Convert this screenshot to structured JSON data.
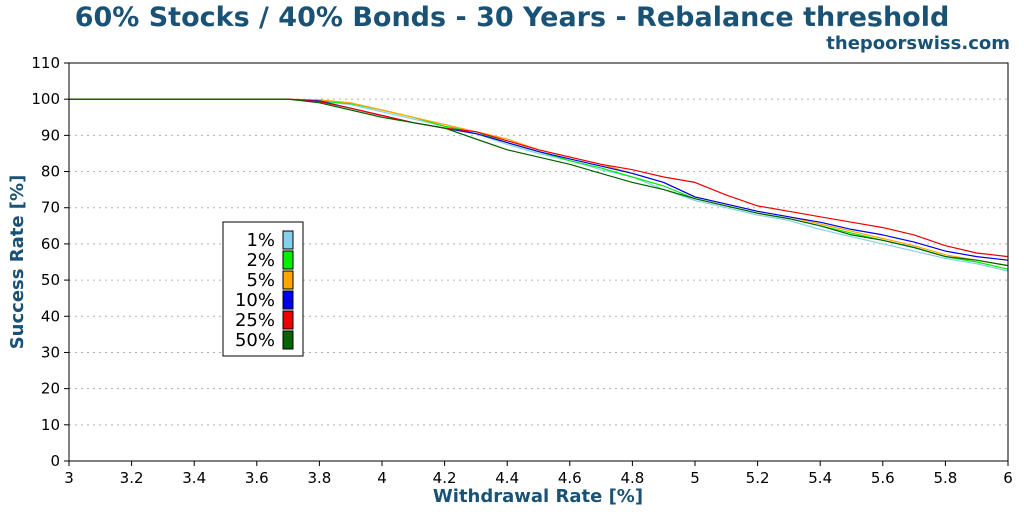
{
  "chart_data": {
    "type": "line",
    "title": "60% Stocks / 40% Bonds - 30 Years - Rebalance threshold",
    "subtitle": "thepoorswiss.com",
    "xlabel": "Withdrawal Rate [%]",
    "ylabel": "Success Rate [%]",
    "xlim": [
      3,
      6
    ],
    "ylim": [
      0,
      110
    ],
    "xticks": [
      "3",
      "3.2",
      "3.4",
      "3.6",
      "3.8",
      "4",
      "4.2",
      "4.4",
      "4.6",
      "4.8",
      "5",
      "5.2",
      "5.4",
      "5.6",
      "5.8",
      "6"
    ],
    "yticks": [
      "0",
      "10",
      "20",
      "30",
      "40",
      "50",
      "60",
      "70",
      "80",
      "90",
      "100",
      "110"
    ],
    "grid": "horizontal-dotted",
    "legend_position": "center-left",
    "x": [
      3.0,
      3.7,
      3.8,
      3.9,
      4.0,
      4.1,
      4.2,
      4.3,
      4.4,
      4.5,
      4.6,
      4.7,
      4.8,
      4.9,
      5.0,
      5.1,
      5.2,
      5.3,
      5.4,
      5.5,
      5.6,
      5.7,
      5.8,
      5.9,
      6.0
    ],
    "series": [
      {
        "name": "1%",
        "color": "#87ceeb",
        "values": [
          100,
          100,
          99.5,
          98.5,
          96.5,
          94.5,
          92.5,
          90.5,
          87.5,
          85,
          83,
          80.5,
          78.5,
          75,
          72,
          70,
          68,
          66.5,
          64,
          62,
          60,
          58,
          56,
          54.5,
          52.5
        ]
      },
      {
        "name": "2%",
        "color": "#00ee00",
        "values": [
          100,
          100,
          99.5,
          98.8,
          97,
          95,
          92.5,
          91,
          88,
          85.5,
          83,
          81,
          78.5,
          76,
          72.5,
          70.5,
          68.5,
          67,
          65,
          63,
          61,
          59,
          56.5,
          55,
          53
        ]
      },
      {
        "name": "5%",
        "color": "#ffa500",
        "values": [
          100,
          100,
          99.8,
          99,
          97,
          95,
          93,
          91,
          89,
          86,
          84,
          82,
          79.5,
          77,
          73,
          71,
          69,
          67.5,
          65.5,
          63.5,
          61.5,
          59.5,
          57,
          55.5,
          54
        ]
      },
      {
        "name": "10%",
        "color": "#0000ee",
        "values": [
          100,
          100,
          99.5,
          97.5,
          95.5,
          93.5,
          92,
          90.5,
          88,
          85.5,
          83.5,
          81.5,
          79.5,
          77,
          73,
          71,
          69,
          67.5,
          66,
          64,
          62.5,
          60.5,
          58,
          56.5,
          55.5
        ]
      },
      {
        "name": "25%",
        "color": "#ee0000",
        "values": [
          100,
          100,
          99.3,
          97.5,
          95.5,
          93.5,
          92,
          91,
          88.5,
          86,
          84,
          82,
          80.5,
          78.5,
          77,
          73.5,
          70.5,
          69,
          67.5,
          66,
          64.5,
          62.5,
          59.5,
          57.5,
          56.5
        ]
      },
      {
        "name": "50%",
        "color": "#006400",
        "values": [
          100,
          100,
          99,
          97,
          95,
          93.5,
          92,
          89,
          86,
          84,
          82,
          79.5,
          77,
          75,
          72.5,
          70.5,
          68.5,
          67,
          65,
          62.5,
          61,
          59,
          56.5,
          55.5,
          54
        ]
      }
    ]
  }
}
